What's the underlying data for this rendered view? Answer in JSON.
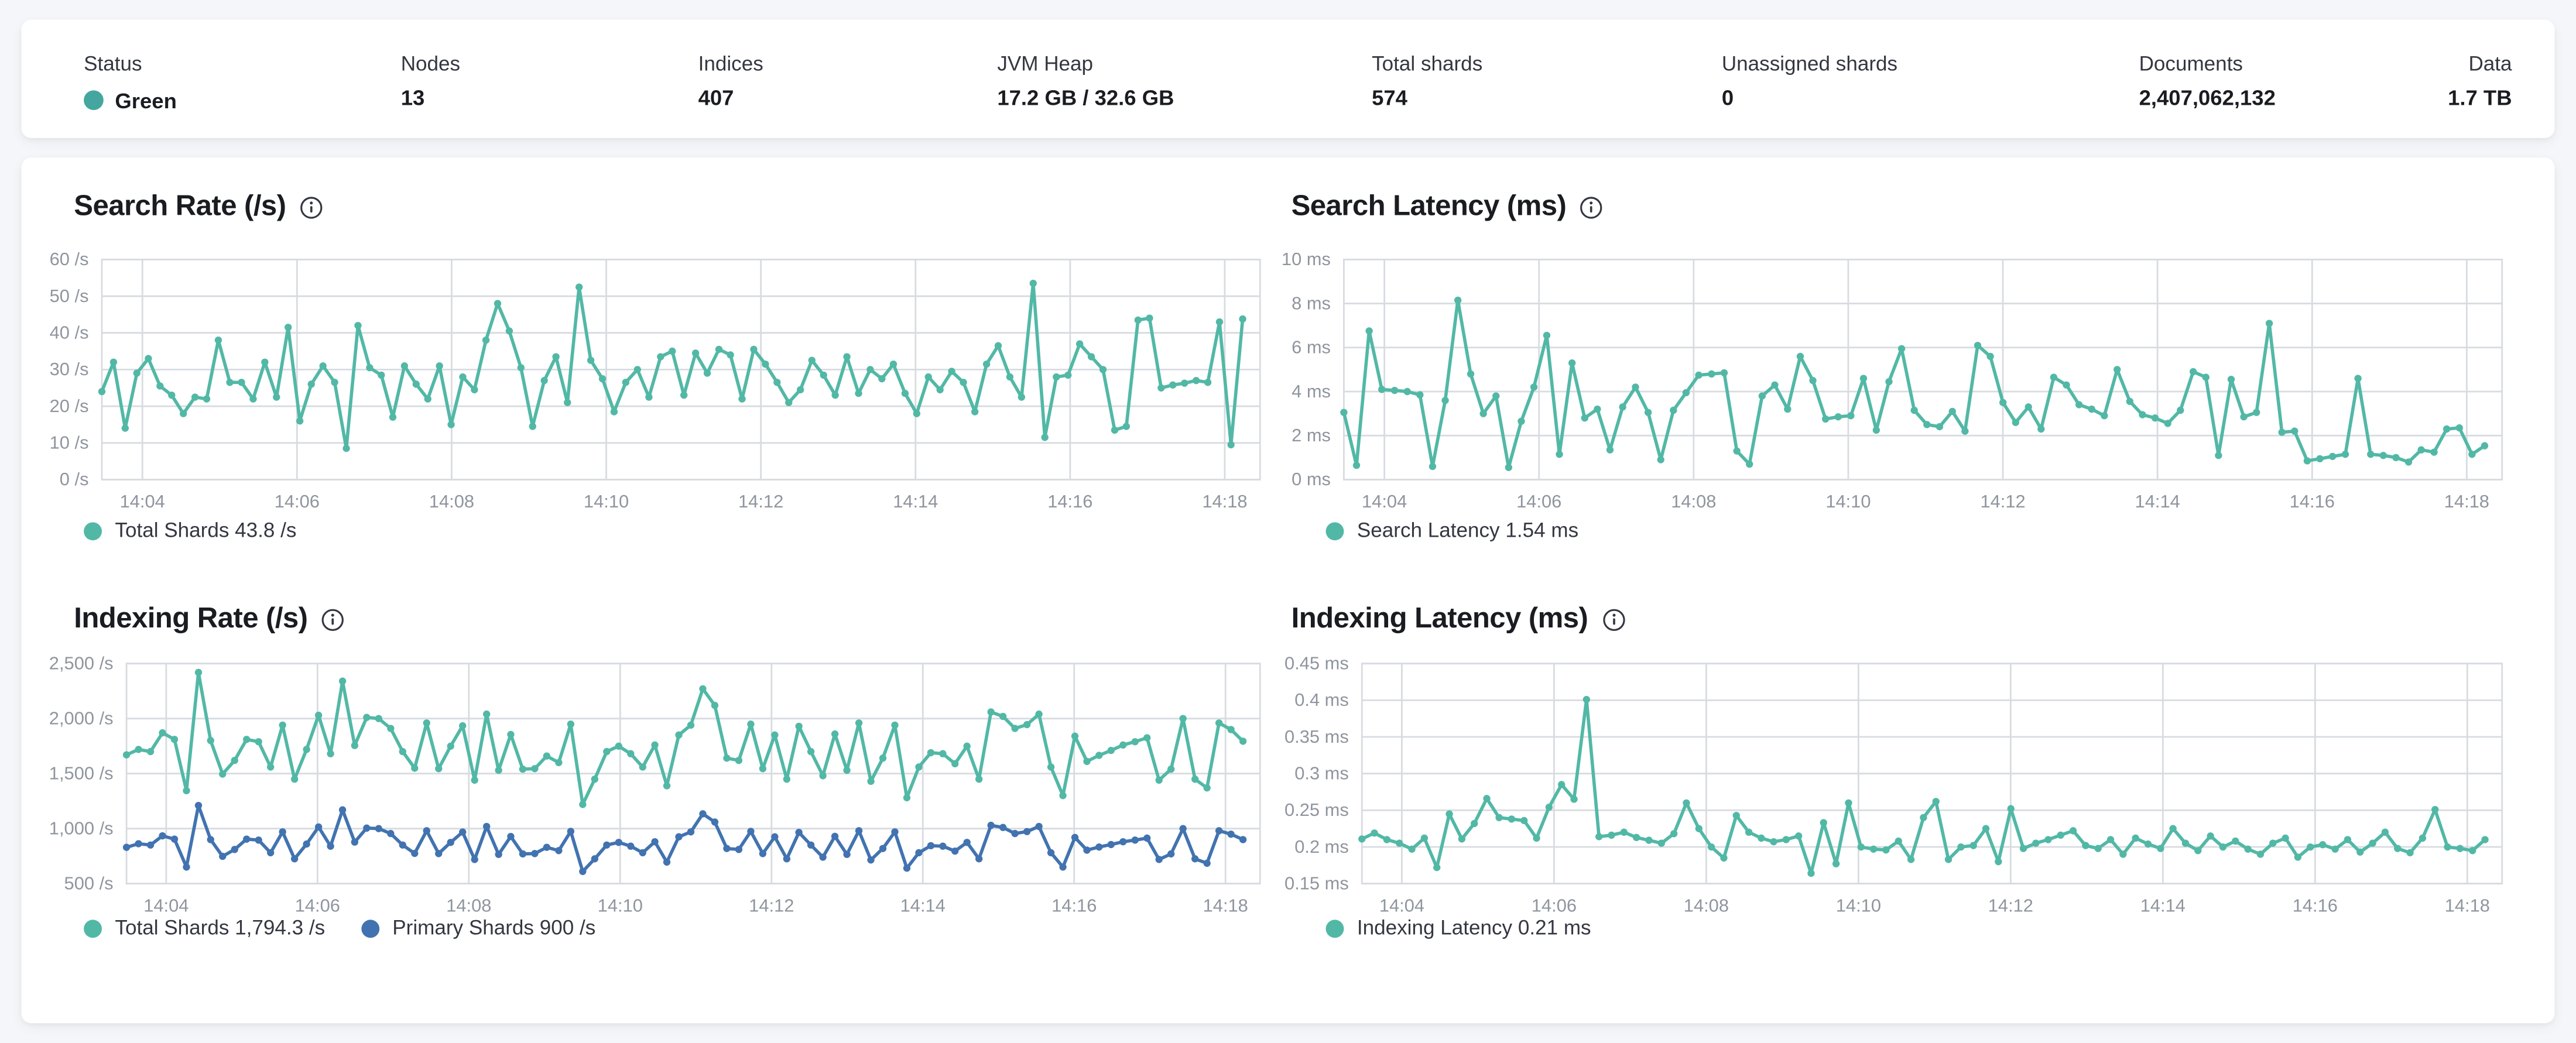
{
  "header": {
    "status_color": "#45a6a0",
    "stats": [
      {
        "label": "Status",
        "value": "Green"
      },
      {
        "label": "Nodes",
        "value": "13"
      },
      {
        "label": "Indices",
        "value": "407"
      },
      {
        "label": "JVM Heap",
        "value": "17.2 GB / 32.6 GB"
      },
      {
        "label": "Total shards",
        "value": "574"
      },
      {
        "label": "Unassigned shards",
        "value": "0"
      },
      {
        "label": "Documents",
        "value": "2,407,062,132"
      },
      {
        "label": "Data",
        "value": "1.7 TB"
      }
    ]
  },
  "chart_data": [
    {
      "type": "line",
      "title": "Search Rate (/s)",
      "ylabel": "/s",
      "ylim": [
        0,
        60
      ],
      "y_tick_labels": [
        "60 /s",
        "50 /s",
        "40 /s",
        "30 /s",
        "20 /s",
        "10 /s",
        "0 /s"
      ],
      "x_tick_labels": [
        "14:04",
        "14:06",
        "14:08",
        "14:10",
        "14:12",
        "14:14",
        "14:16",
        "14:18"
      ],
      "grid": true,
      "legend_position": "bottom",
      "legend": [
        {
          "label": "Total Shards 43.8 /s",
          "color": "#52b8a6"
        }
      ],
      "series": [
        {
          "name": "Total Shards",
          "color": "#52b8a6",
          "values": [
            24,
            32,
            14,
            29,
            33,
            25.5,
            23,
            18,
            22.5,
            22,
            38,
            26.5,
            26.5,
            22,
            32,
            22.5,
            41.5,
            16,
            26,
            31,
            26.5,
            8.5,
            42,
            30.5,
            28.5,
            17,
            31,
            26,
            22,
            31,
            15,
            28,
            24.5,
            38,
            48,
            40.5,
            30.5,
            14.5,
            27,
            33.5,
            21,
            52.5,
            32.5,
            27.5,
            18.5,
            26.5,
            30,
            22.5,
            33.5,
            35,
            23,
            34.5,
            29,
            35.5,
            34,
            22,
            35.5,
            31.5,
            26.5,
            21,
            24.5,
            32.5,
            28.5,
            23,
            33.5,
            23.5,
            30,
            27.5,
            31.5,
            23.5,
            18,
            28,
            24.5,
            29.5,
            26.5,
            18.5,
            31.5,
            36.5,
            28,
            22.5,
            53.5,
            11.5,
            28,
            28.5,
            37,
            33.5,
            30,
            13.5,
            14.5,
            43.5,
            44,
            25,
            25.8,
            26.3,
            27,
            26.5,
            43,
            9.5,
            43.8
          ]
        }
      ]
    },
    {
      "type": "line",
      "title": "Search Latency (ms)",
      "ylabel": "ms",
      "ylim": [
        0,
        10
      ],
      "y_tick_labels": [
        "10 ms",
        "8 ms",
        "6 ms",
        "4 ms",
        "2 ms",
        "0 ms"
      ],
      "x_tick_labels": [
        "14:04",
        "14:06",
        "14:08",
        "14:10",
        "14:12",
        "14:14",
        "14:16",
        "14:18"
      ],
      "grid": true,
      "legend_position": "bottom",
      "legend": [
        {
          "label": "Search Latency 1.54 ms",
          "color": "#52b8a6"
        }
      ],
      "series": [
        {
          "name": "Search Latency",
          "color": "#52b8a6",
          "values": [
            3.05,
            0.65,
            6.75,
            4.1,
            4.05,
            4,
            3.85,
            0.6,
            3.6,
            8.15,
            4.8,
            3,
            3.8,
            0.55,
            2.65,
            4.2,
            6.55,
            1.15,
            5.3,
            2.8,
            3.2,
            1.35,
            3.3,
            4.2,
            3.05,
            0.9,
            3.15,
            3.95,
            4.75,
            4.8,
            4.85,
            1.3,
            0.7,
            3.8,
            4.3,
            3.2,
            5.6,
            4.5,
            2.75,
            2.85,
            2.9,
            4.6,
            2.25,
            4.45,
            5.95,
            3.15,
            2.5,
            2.4,
            3.1,
            2.2,
            6.1,
            5.6,
            3.5,
            2.6,
            3.3,
            2.3,
            4.65,
            4.3,
            3.4,
            3.2,
            2.9,
            5,
            3.55,
            2.95,
            2.8,
            2.55,
            3.15,
            4.9,
            4.65,
            1.1,
            4.55,
            2.85,
            3.05,
            7.1,
            2.15,
            2.2,
            0.85,
            0.95,
            1.05,
            1.15,
            4.6,
            1.15,
            1.1,
            1,
            0.8,
            1.35,
            1.25,
            2.3,
            2.35,
            1.15,
            1.54
          ]
        }
      ]
    },
    {
      "type": "line",
      "title": "Indexing Rate (/s)",
      "ylabel": "/s",
      "ylim": [
        500,
        2500
      ],
      "y_tick_labels": [
        "2,500 /s",
        "2,000 /s",
        "1,500 /s",
        "1,000 /s",
        "500 /s"
      ],
      "x_tick_labels": [
        "14:04",
        "14:06",
        "14:08",
        "14:10",
        "14:12",
        "14:14",
        "14:16",
        "14:18"
      ],
      "grid": true,
      "legend_position": "bottom",
      "legend": [
        {
          "label": "Total Shards 1,794.3 /s",
          "color": "#52b8a6"
        },
        {
          "label": "Primary Shards 900 /s",
          "color": "#4273b0"
        }
      ],
      "series": [
        {
          "name": "Total Shards",
          "color": "#52b8a6",
          "values": [
            1670,
            1720,
            1700,
            1870,
            1810,
            1345,
            2420,
            1800,
            1495,
            1620,
            1810,
            1790,
            1560,
            1940,
            1450,
            1720,
            2030,
            1680,
            2340,
            1755,
            2010,
            2000,
            1910,
            1700,
            1550,
            1960,
            1545,
            1750,
            1935,
            1440,
            2040,
            1530,
            1855,
            1540,
            1545,
            1660,
            1600,
            1950,
            1220,
            1450,
            1700,
            1750,
            1680,
            1560,
            1760,
            1390,
            1850,
            1940,
            2270,
            2120,
            1640,
            1620,
            1950,
            1545,
            1850,
            1450,
            1930,
            1700,
            1480,
            1860,
            1530,
            1960,
            1430,
            1640,
            1940,
            1280,
            1560,
            1690,
            1680,
            1590,
            1750,
            1450,
            2060,
            2020,
            1910,
            1945,
            2040,
            1560,
            1300,
            1840,
            1610,
            1665,
            1710,
            1760,
            1790,
            1825,
            1440,
            1540,
            2000,
            1450,
            1370,
            1960,
            1900,
            1794.3
          ]
        },
        {
          "name": "Primary Shards",
          "color": "#4273b0",
          "values": [
            830,
            862,
            850,
            935,
            905,
            650,
            1210,
            900,
            748,
            810,
            905,
            895,
            780,
            970,
            725,
            860,
            1015,
            840,
            1170,
            878,
            1005,
            1000,
            955,
            850,
            775,
            980,
            773,
            875,
            968,
            720,
            1020,
            765,
            928,
            770,
            773,
            830,
            800,
            975,
            610,
            725,
            850,
            875,
            840,
            780,
            880,
            695,
            925,
            970,
            1135,
            1060,
            820,
            810,
            975,
            773,
            925,
            725,
            965,
            850,
            740,
            930,
            765,
            980,
            715,
            820,
            970,
            640,
            780,
            845,
            840,
            795,
            875,
            725,
            1030,
            1010,
            955,
            973,
            1020,
            780,
            650,
            920,
            805,
            833,
            855,
            880,
            895,
            913,
            720,
            770,
            1000,
            725,
            685,
            980,
            950,
            900
          ]
        }
      ]
    },
    {
      "type": "line",
      "title": "Indexing Latency (ms)",
      "ylabel": "ms",
      "ylim": [
        0.15,
        0.45
      ],
      "y_tick_labels": [
        "0.45 ms",
        "0.4 ms",
        "0.35 ms",
        "0.3 ms",
        "0.25 ms",
        "0.2 ms",
        "0.15 ms"
      ],
      "x_tick_labels": [
        "14:04",
        "14:06",
        "14:08",
        "14:10",
        "14:12",
        "14:14",
        "14:16",
        "14:18"
      ],
      "grid": true,
      "legend_position": "bottom",
      "legend": [
        {
          "label": "Indexing Latency 0.21 ms",
          "color": "#52b8a6"
        }
      ],
      "series": [
        {
          "name": "Indexing Latency",
          "color": "#52b8a6",
          "values": [
            0.211,
            0.219,
            0.21,
            0.205,
            0.197,
            0.212,
            0.172,
            0.245,
            0.211,
            0.232,
            0.266,
            0.24,
            0.238,
            0.236,
            0.212,
            0.254,
            0.285,
            0.265,
            0.401,
            0.214,
            0.216,
            0.22,
            0.213,
            0.209,
            0.205,
            0.218,
            0.26,
            0.225,
            0.2,
            0.185,
            0.243,
            0.22,
            0.212,
            0.207,
            0.21,
            0.215,
            0.164,
            0.233,
            0.177,
            0.26,
            0.2,
            0.197,
            0.196,
            0.208,
            0.183,
            0.24,
            0.262,
            0.183,
            0.2,
            0.202,
            0.225,
            0.18,
            0.252,
            0.198,
            0.205,
            0.21,
            0.216,
            0.222,
            0.202,
            0.198,
            0.21,
            0.19,
            0.212,
            0.204,
            0.198,
            0.225,
            0.205,
            0.195,
            0.215,
            0.2,
            0.208,
            0.197,
            0.19,
            0.205,
            0.212,
            0.186,
            0.2,
            0.203,
            0.197,
            0.21,
            0.193,
            0.205,
            0.22,
            0.198,
            0.192,
            0.212,
            0.251,
            0.2,
            0.198,
            0.195,
            0.21
          ]
        }
      ]
    }
  ],
  "ui_colors": {
    "tick_text": "#8f959e",
    "grid_line": "#d8dbe0",
    "title_text": "#1a1c21"
  }
}
